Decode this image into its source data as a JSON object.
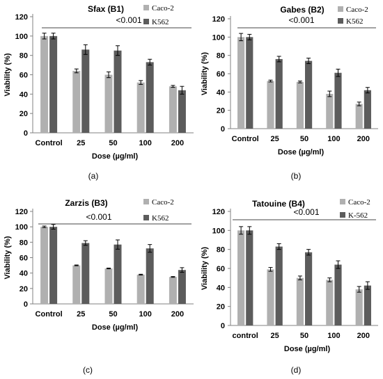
{
  "colors": {
    "caco2": "#b0b0b0",
    "k562": "#5c5c5c",
    "axis": "#808080",
    "text": "#000000",
    "errorbar": "#000000"
  },
  "chart_data": [
    {
      "type": "bar",
      "title": "Sfax (B1)",
      "panel_label": "(a)",
      "annotation": "<0.001",
      "xlabel": "Dose (µg/ml)",
      "ylabel": "Viability (%)",
      "categories": [
        "Control",
        "25",
        "50",
        "100",
        "200"
      ],
      "ylim": [
        0,
        120
      ],
      "yticks": [
        0,
        20,
        40,
        60,
        80,
        100,
        120
      ],
      "grid": false,
      "legend": "top-right",
      "series": [
        {
          "name": "Caco-2",
          "values": [
            100,
            64,
            60,
            52,
            48
          ],
          "errors": [
            3,
            2,
            3,
            2,
            1
          ]
        },
        {
          "name": "K562",
          "values": [
            100,
            86,
            85,
            73,
            44
          ],
          "errors": [
            3,
            5,
            5,
            3,
            4
          ]
        }
      ]
    },
    {
      "type": "bar",
      "title": "Gabes (B2)",
      "panel_label": "(b)",
      "annotation": "<0.001",
      "xlabel": "Dose (µg/ml)",
      "ylabel": "Viability (%)",
      "categories": [
        "Control",
        "25",
        "50",
        "100",
        "200"
      ],
      "ylim": [
        0,
        120
      ],
      "yticks": [
        0,
        20,
        40,
        60,
        80,
        100,
        120
      ],
      "grid": false,
      "legend": "top-right",
      "series": [
        {
          "name": "Caco-2",
          "values": [
            100,
            52,
            51,
            38,
            27
          ],
          "errors": [
            4,
            1,
            1,
            3,
            2
          ]
        },
        {
          "name": "K562",
          "values": [
            100,
            76,
            74,
            61,
            42
          ],
          "errors": [
            3,
            3,
            3,
            4,
            3
          ]
        }
      ]
    },
    {
      "type": "bar",
      "title": "Zarzis (B3)",
      "panel_label": "(c)",
      "annotation": "<0.001",
      "xlabel": "Dose (µg/ml)",
      "ylabel": "Viability (%)",
      "categories": [
        "Control",
        "25",
        "50",
        "100",
        "200"
      ],
      "ylim": [
        0,
        120
      ],
      "yticks": [
        0,
        20,
        40,
        60,
        80,
        100,
        120
      ],
      "grid": false,
      "legend": "top-right",
      "series": [
        {
          "name": "Caco-2",
          "values": [
            100,
            50,
            46,
            38,
            35
          ],
          "errors": [
            1,
            0.5,
            0.5,
            0.5,
            0.5
          ]
        },
        {
          "name": "K562",
          "values": [
            100,
            79,
            77,
            72,
            44
          ],
          "errors": [
            3,
            3,
            6,
            5,
            3
          ]
        }
      ]
    },
    {
      "type": "bar",
      "title": "Tatouine (B4)",
      "panel_label": "(d)",
      "annotation": "<0.001",
      "xlabel": "Dose (µg/ml)",
      "ylabel": "Viability (%)",
      "categories": [
        "control",
        "25",
        "50",
        "100",
        "200"
      ],
      "ylim": [
        0,
        120
      ],
      "yticks": [
        0,
        20,
        40,
        60,
        80,
        100,
        120
      ],
      "grid": false,
      "legend": "top-right",
      "series": [
        {
          "name": "Caco-2",
          "values": [
            100,
            59,
            50,
            48,
            38
          ],
          "errors": [
            4,
            2,
            2,
            2,
            3
          ]
        },
        {
          "name": "K-562",
          "values": [
            100,
            83,
            77,
            64,
            42
          ],
          "errors": [
            4,
            3,
            3,
            4,
            4
          ]
        }
      ]
    }
  ]
}
